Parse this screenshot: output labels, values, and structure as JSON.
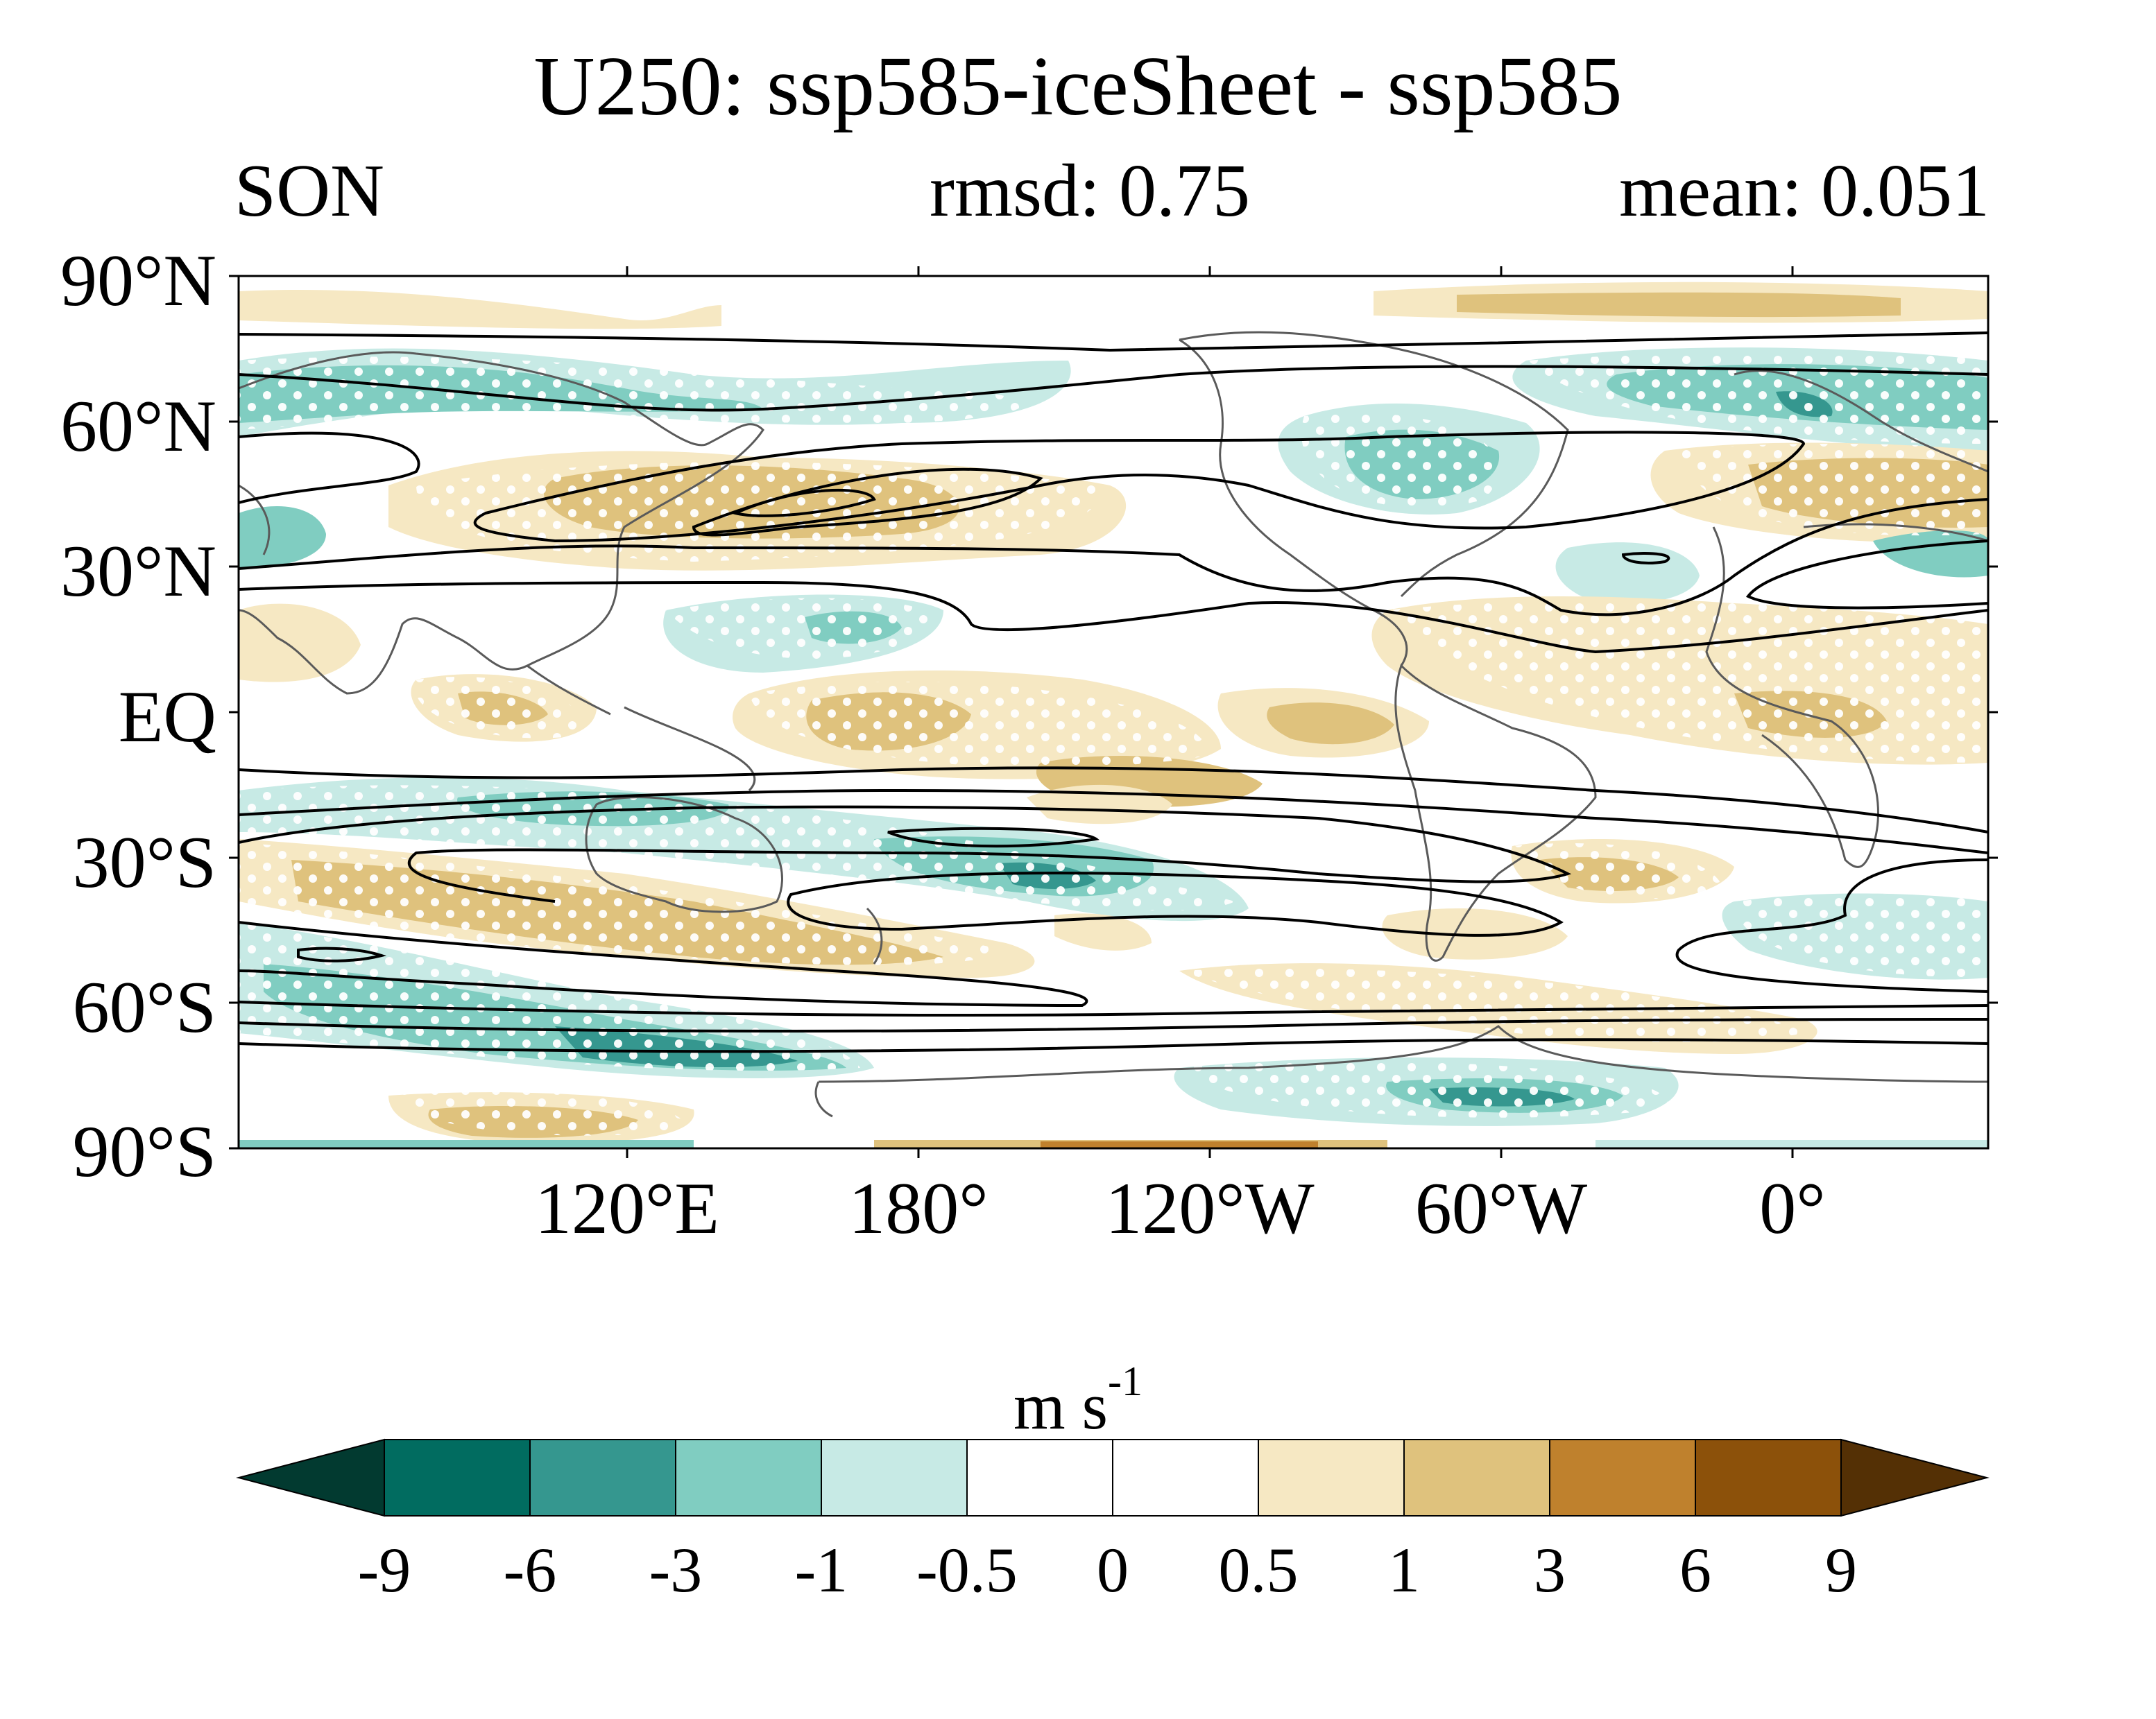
{
  "title": "U250: ssp585-iceSheet - ssp585",
  "left_subtitle": "SON",
  "center_subtitle": "rmsd: 0.75",
  "right_subtitle": "mean: 0.051",
  "lat_labels": [
    "90°N",
    "60°N",
    "30°N",
    "EQ",
    "30°S",
    "60°S",
    "90°S"
  ],
  "lon_labels": [
    "120°E",
    "180°",
    "120°W",
    "60°W",
    "0°"
  ],
  "colorbar": {
    "units": "m s",
    "units_exponent": "-1",
    "levels": [
      "-9",
      "-6",
      "-3",
      "-1",
      "-0.5",
      "0",
      "0.5",
      "1",
      "3",
      "6",
      "9"
    ],
    "colors": [
      "#023a30",
      "#016c60",
      "#35978f",
      "#80cdc1",
      "#c7eae5",
      "#ffffff",
      "#ffffff",
      "#f6e8c3",
      "#dfc27d",
      "#bf812d",
      "#8c510a",
      "#543005"
    ]
  },
  "map": {
    "projection": "equirectangular",
    "central_longitude": 160,
    "lon_range": [
      40,
      400
    ],
    "lat_range": [
      -90,
      90
    ],
    "filled_variable": "U250 difference",
    "contour_variable": "U250 climatology",
    "stippling": "white dots"
  }
}
